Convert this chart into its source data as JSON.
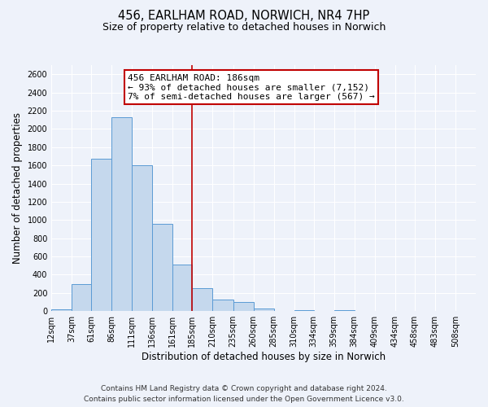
{
  "title": "456, EARLHAM ROAD, NORWICH, NR4 7HP",
  "subtitle": "Size of property relative to detached houses in Norwich",
  "xlabel": "Distribution of detached houses by size in Norwich",
  "ylabel": "Number of detached properties",
  "bar_left_edges": [
    12,
    37,
    61,
    86,
    111,
    136,
    161,
    185,
    210,
    235,
    260,
    285,
    310,
    334,
    359,
    384,
    409,
    434,
    458,
    483
  ],
  "bar_widths": [
    25,
    24,
    25,
    25,
    25,
    25,
    24,
    25,
    25,
    25,
    25,
    25,
    24,
    25,
    25,
    25,
    25,
    24,
    25,
    25
  ],
  "bar_heights": [
    20,
    295,
    1670,
    2130,
    1600,
    960,
    510,
    255,
    125,
    100,
    30,
    0,
    10,
    0,
    10,
    0,
    0,
    0,
    5,
    0
  ],
  "bar_color": "#c5d8ed",
  "bar_edge_color": "#5b9bd5",
  "vline_x": 185,
  "vline_color": "#c00000",
  "annotation_lines": [
    "456 EARLHAM ROAD: 186sqm",
    "← 93% of detached houses are smaller (7,152)",
    "7% of semi-detached houses are larger (567) →"
  ],
  "annotation_box_color": "white",
  "annotation_box_edge_color": "#c00000",
  "tick_labels": [
    "12sqm",
    "37sqm",
    "61sqm",
    "86sqm",
    "111sqm",
    "136sqm",
    "161sqm",
    "185sqm",
    "210sqm",
    "235sqm",
    "260sqm",
    "285sqm",
    "310sqm",
    "334sqm",
    "359sqm",
    "384sqm",
    "409sqm",
    "434sqm",
    "458sqm",
    "483sqm",
    "508sqm"
  ],
  "tick_positions": [
    12,
    37,
    61,
    86,
    111,
    136,
    161,
    185,
    210,
    235,
    260,
    285,
    310,
    334,
    359,
    384,
    409,
    434,
    458,
    483,
    508
  ],
  "ylim": [
    0,
    2700
  ],
  "xlim": [
    12,
    533
  ],
  "yticks": [
    0,
    200,
    400,
    600,
    800,
    1000,
    1200,
    1400,
    1600,
    1800,
    2000,
    2200,
    2400,
    2600
  ],
  "footer_line1": "Contains HM Land Registry data © Crown copyright and database right 2024.",
  "footer_line2": "Contains public sector information licensed under the Open Government Licence v3.0.",
  "bg_color": "#eef2fa",
  "grid_color": "white",
  "title_fontsize": 10.5,
  "subtitle_fontsize": 9,
  "axis_label_fontsize": 8.5,
  "tick_fontsize": 7,
  "annotation_fontsize": 8,
  "footer_fontsize": 6.5
}
